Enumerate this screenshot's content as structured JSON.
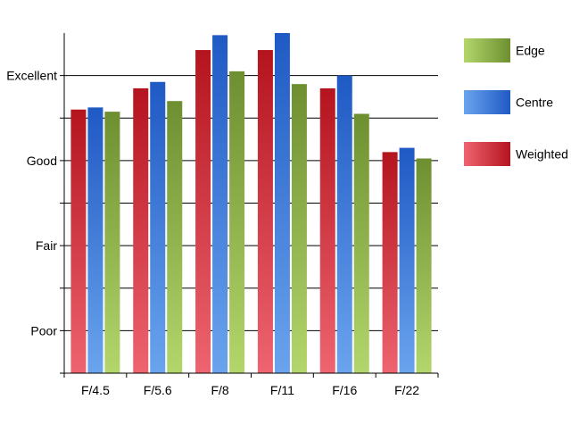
{
  "chart_data": {
    "type": "bar",
    "categories": [
      "F/4.5",
      "F/5.6",
      "F/8",
      "F/11",
      "F/16",
      "F/22"
    ],
    "y_tick_labels": [
      "",
      "Poor",
      "",
      "Fair",
      "",
      "Good",
      "",
      "Excellent"
    ],
    "ylim": [
      0,
      8
    ],
    "grid": true,
    "legend_position": "right",
    "series": [
      {
        "name": "Weighted",
        "values": [
          6.2,
          6.7,
          7.6,
          7.6,
          6.7,
          5.2
        ],
        "color_top": "#b4141e",
        "color_bottom": "#ee6470"
      },
      {
        "name": "Centre",
        "values": [
          6.25,
          6.85,
          7.95,
          8.0,
          7.0,
          5.3
        ],
        "color_top": "#1f59c4",
        "color_bottom": "#6aa4ee"
      },
      {
        "name": "Edge",
        "values": [
          6.15,
          6.4,
          7.1,
          6.8,
          6.1,
          5.05
        ],
        "color_top": "#6e8f30",
        "color_bottom": "#b3d66c"
      }
    ],
    "legend_order": [
      "Edge",
      "Centre",
      "Weighted"
    ]
  }
}
